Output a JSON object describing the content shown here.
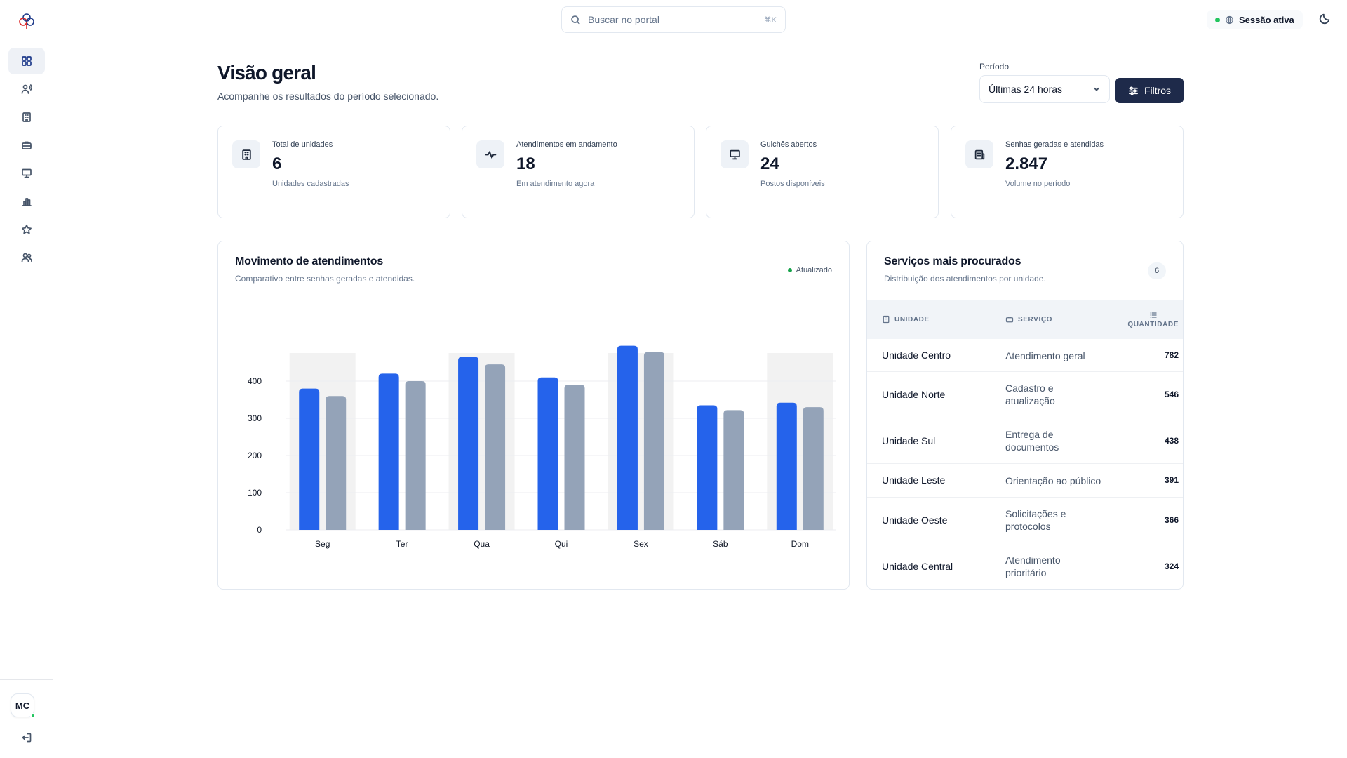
{
  "app": {
    "logo_icon": "flower-logo-icon",
    "nav": [
      {
        "icon": "dashboard-grid-icon",
        "active": true
      },
      {
        "icon": "user-voice-icon",
        "active": false
      },
      {
        "icon": "building-icon",
        "active": false
      },
      {
        "icon": "briefcase-icon",
        "active": false
      },
      {
        "icon": "monitor-icon",
        "active": false
      },
      {
        "icon": "bar-chart-icon",
        "active": false
      },
      {
        "icon": "star-icon",
        "active": false
      },
      {
        "icon": "users-icon",
        "active": false
      }
    ],
    "user_initials": "MC",
    "logout_icon": "logout-icon"
  },
  "topbar": {
    "search_placeholder": "Buscar no portal",
    "search_shortcut": "⌘K",
    "session_label": "Sessão ativa",
    "theme_icon": "moon-icon"
  },
  "header": {
    "title": "Visão geral",
    "subtitle": "Acompanhe os resultados do período selecionado.",
    "period_label": "Período",
    "period_value": "Últimas 24 horas",
    "filters_label": "Filtros"
  },
  "stats": [
    {
      "icon": "building-icon",
      "label": "Total de unidades",
      "value": "6",
      "hint": "Unidades cadastradas"
    },
    {
      "icon": "activity-icon",
      "label": "Atendimentos em andamento",
      "value": "18",
      "hint": "Em atendimento agora"
    },
    {
      "icon": "monitor-icon",
      "label": "Guichês abertos",
      "value": "24",
      "hint": "Postos disponíveis"
    },
    {
      "icon": "ticket-icon",
      "label": "Senhas geradas e atendidas",
      "value": "2.847",
      "hint": "Volume no período"
    }
  ],
  "chart_card": {
    "title": "Movimento de atendimentos",
    "subtitle": "Comparativo entre senhas geradas e atendidas.",
    "status": "Atualizado"
  },
  "chart_data": {
    "type": "bar",
    "categories": [
      "Seg",
      "Ter",
      "Qua",
      "Qui",
      "Sex",
      "Sáb",
      "Dom"
    ],
    "series": [
      {
        "color": "#2563eb",
        "values": [
          380,
          420,
          465,
          410,
          495,
          335,
          342
        ]
      },
      {
        "color": "#94a3b8",
        "values": [
          360,
          400,
          445,
          390,
          478,
          322,
          330
        ]
      }
    ],
    "highlighted_categories": [
      "Seg",
      "Qua",
      "Sex",
      "Dom"
    ],
    "ylim": [
      0,
      500
    ],
    "yticks": [
      0,
      100,
      200,
      300,
      400
    ],
    "grid": true,
    "legend": "none"
  },
  "table_card": {
    "title": "Serviços mais procurados",
    "subtitle": "Distribuição dos atendimentos por unidade.",
    "count": "6",
    "columns": {
      "unit": "UNIDADE",
      "service": "SERVIÇO",
      "quantity": "QUANTIDADE"
    },
    "rows": [
      {
        "unit": "Unidade Centro",
        "service": "Atendimento geral",
        "quantity": "782"
      },
      {
        "unit": "Unidade Norte",
        "service": "Cadastro e atualização",
        "quantity": "546"
      },
      {
        "unit": "Unidade Sul",
        "service": "Entrega de documentos",
        "quantity": "438"
      },
      {
        "unit": "Unidade Leste",
        "service": "Orientação ao público",
        "quantity": "391"
      },
      {
        "unit": "Unidade Oeste",
        "service": "Solicitações e protocolos",
        "quantity": "366"
      },
      {
        "unit": "Unidade Central",
        "service": "Atendimento prioritário",
        "quantity": "324"
      }
    ]
  }
}
